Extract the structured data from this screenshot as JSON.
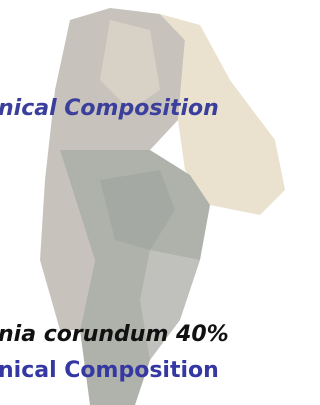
{
  "slide": {
    "heading": "nical Composition",
    "body": {
      "line": "nia corundum 40%",
      "subheading": "nical Composition"
    }
  }
}
